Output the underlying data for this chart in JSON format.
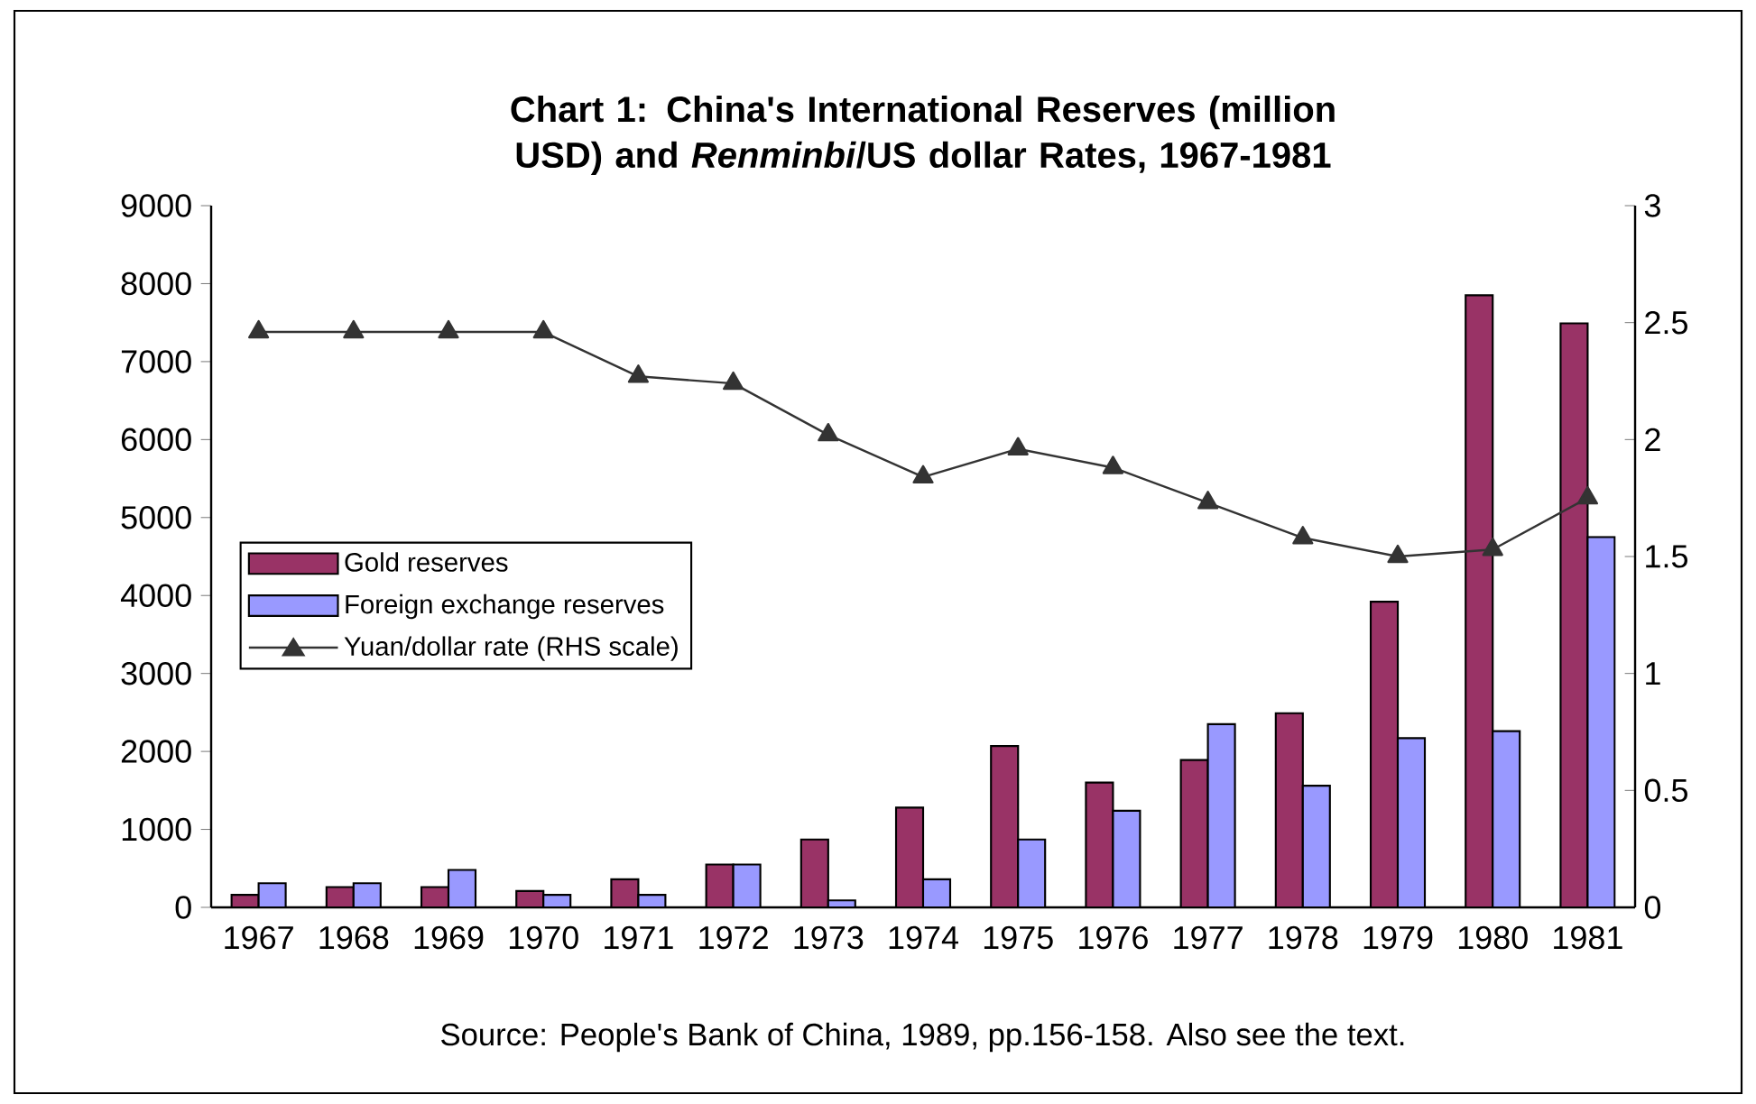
{
  "chart_data": {
    "type": "bar",
    "title": "**Chart 1**: China's International Reserves (million USD) and *Renminbi*/US dollar Rates, 1967-1981",
    "categories": [
      "1967",
      "1968",
      "1969",
      "1970",
      "1971",
      "1972",
      "1973",
      "1974",
      "1975",
      "1976",
      "1977",
      "1978",
      "1979",
      "1980",
      "1981"
    ],
    "series": [
      {
        "name": "Gold reserves",
        "color": "#993366",
        "values": [
          160,
          260,
          260,
          210,
          360,
          550,
          870,
          1280,
          2070,
          1600,
          1890,
          2490,
          3920,
          7850,
          7490
        ]
      },
      {
        "name": "Foreign exchange reserves",
        "color": "#9999ff",
        "values": [
          310,
          310,
          480,
          160,
          160,
          550,
          90,
          360,
          870,
          1240,
          2350,
          1560,
          2170,
          2260,
          4750
        ]
      },
      {
        "name": "Yuan/dollar rate (RHS scale)",
        "type": "line",
        "axis": "y2",
        "color": "#333333",
        "marker": "triangle",
        "values": [
          2.46,
          2.46,
          2.46,
          2.46,
          2.27,
          2.24,
          2.02,
          1.84,
          1.96,
          1.88,
          1.73,
          1.58,
          1.5,
          1.53,
          1.75
        ]
      }
    ],
    "ylim": [
      0,
      9000
    ],
    "yticks": [
      0,
      1000,
      2000,
      3000,
      4000,
      5000,
      6000,
      7000,
      8000,
      9000
    ],
    "y2lim": [
      0,
      3
    ],
    "y2ticks": [
      0,
      0.5,
      1,
      1.5,
      2,
      2.5,
      3
    ],
    "legend": "left",
    "grid": false,
    "annotations": [
      "Source: People's Bank of China, 1989, pp.156-158. Also see the text."
    ]
  }
}
